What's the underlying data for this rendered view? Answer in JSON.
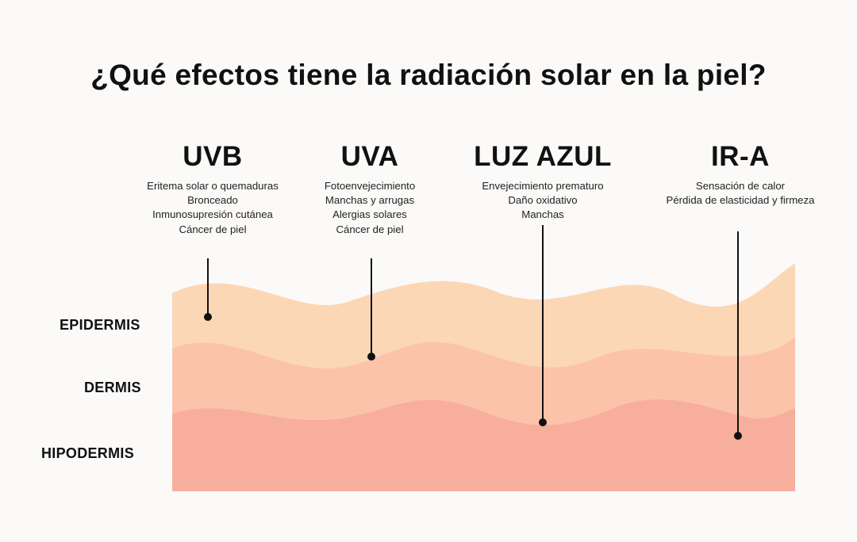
{
  "title": "¿Qué efectos tiene la radiación solar en la piel?",
  "radiations": [
    {
      "name": "UVB",
      "effects": [
        "Eritema solar o quemaduras",
        "Bronceado",
        "Inmunosupresión cutánea",
        "Cáncer de piel"
      ]
    },
    {
      "name": "UVA",
      "effects": [
        "Fotoenvejecimiento",
        "Manchas y arrugas",
        "Alergias solares",
        "Cáncer de piel"
      ]
    },
    {
      "name": "LUZ AZUL",
      "effects": [
        "Envejecimiento prematuro",
        "Daño oxidativo",
        "Manchas"
      ]
    },
    {
      "name": "IR-A",
      "effects": [
        "Sensación de calor",
        "Pérdida de elasticidad y firmeza"
      ]
    }
  ],
  "layers": [
    "EPIDERMIS",
    "DERMIS",
    "HIPODERMIS"
  ],
  "colors": {
    "epidermis": "#fcd7b6",
    "dermis": "#fbc4aa",
    "hipodermis": "#f8ae9c",
    "background": "#fbfaf8",
    "text": "#111111"
  }
}
